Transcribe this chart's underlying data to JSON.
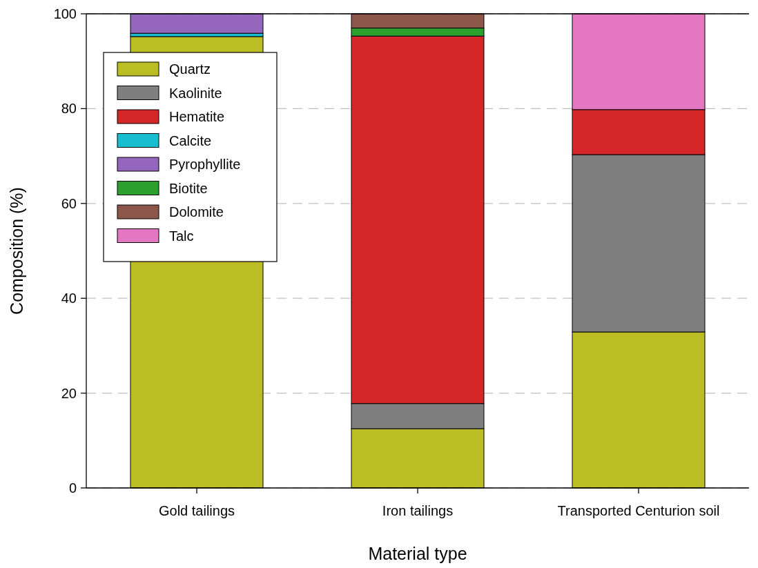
{
  "chart_data": {
    "type": "bar",
    "xlabel": "Material type",
    "ylabel": "Composition (%)",
    "categories": [
      "Gold tailings",
      "Iron tailings",
      "Transported Centurion soil"
    ],
    "stacked": true,
    "ylim": [
      0,
      100
    ],
    "yticks": [
      0,
      20,
      40,
      60,
      80,
      100
    ],
    "grid": "y",
    "legend": "top left",
    "series": [
      {
        "name": "Quartz",
        "color": "#bcbd22",
        "values": [
          95.2,
          12.5,
          32.9
        ]
      },
      {
        "name": "Kaolinite",
        "color": "#7f7f7f",
        "values": [
          null,
          5.3,
          37.4
        ]
      },
      {
        "name": "Hematite",
        "color": "#d62728",
        "values": [
          null,
          77.5,
          9.5
        ]
      },
      {
        "name": "Calcite",
        "color": "#17becf",
        "values": [
          0.7,
          null,
          null
        ]
      },
      {
        "name": "Pyrophyllite",
        "color": "#9467bd",
        "values": [
          4.1,
          null,
          null
        ]
      },
      {
        "name": "Biotite",
        "color": "#2ca02c",
        "values": [
          null,
          1.7,
          null
        ]
      },
      {
        "name": "Dolomite",
        "color": "#8c564b",
        "values": [
          null,
          3.0,
          null
        ]
      },
      {
        "name": "Talc",
        "color": "#e377c2",
        "values": [
          null,
          null,
          20.2
        ]
      }
    ]
  }
}
